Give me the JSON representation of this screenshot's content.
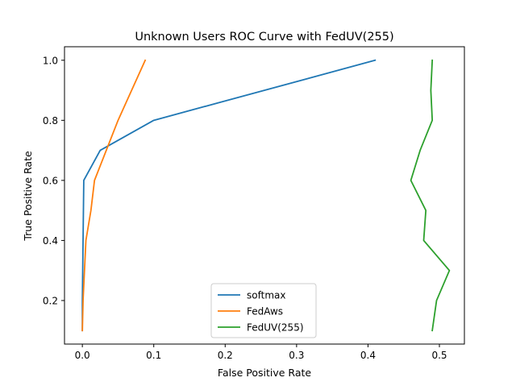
{
  "chart_data": {
    "type": "line",
    "title": "Unknown Users ROC Curve with FedUV(255)",
    "xlabel": "False Positive Rate",
    "ylabel": "True Positive Rate",
    "xlim": [
      -0.025,
      0.535
    ],
    "ylim": [
      0.055,
      1.045
    ],
    "xticks": [
      0.0,
      0.1,
      0.2,
      0.3,
      0.4,
      0.5
    ],
    "xtick_labels": [
      "0.0",
      "0.1",
      "0.2",
      "0.3",
      "0.4",
      "0.5"
    ],
    "yticks": [
      0.2,
      0.4,
      0.6,
      0.8,
      1.0
    ],
    "ytick_labels": [
      "0.2",
      "0.4",
      "0.6",
      "0.8",
      "1.0"
    ],
    "grid": false,
    "legend_position": "bottom-center",
    "series": [
      {
        "name": "softmax",
        "color": "#1f77b4",
        "x": [
          0.0,
          0.0,
          0.001,
          0.002,
          0.025,
          0.1,
          0.41
        ],
        "y": [
          0.1,
          0.2,
          0.4,
          0.6,
          0.7,
          0.8,
          1.0
        ]
      },
      {
        "name": "FedAws",
        "color": "#ff7f0e",
        "x": [
          0.0,
          0.001,
          0.005,
          0.012,
          0.017,
          0.05,
          0.088
        ],
        "y": [
          0.1,
          0.2,
          0.4,
          0.5,
          0.6,
          0.8,
          1.0
        ]
      },
      {
        "name": "FedUV(255)",
        "color": "#2ca02c",
        "x": [
          0.49,
          0.496,
          0.514,
          0.478,
          0.481,
          0.46,
          0.473,
          0.49,
          0.488,
          0.49
        ],
        "y": [
          0.1,
          0.2,
          0.3,
          0.4,
          0.5,
          0.6,
          0.7,
          0.8,
          0.9,
          1.0
        ]
      }
    ]
  }
}
